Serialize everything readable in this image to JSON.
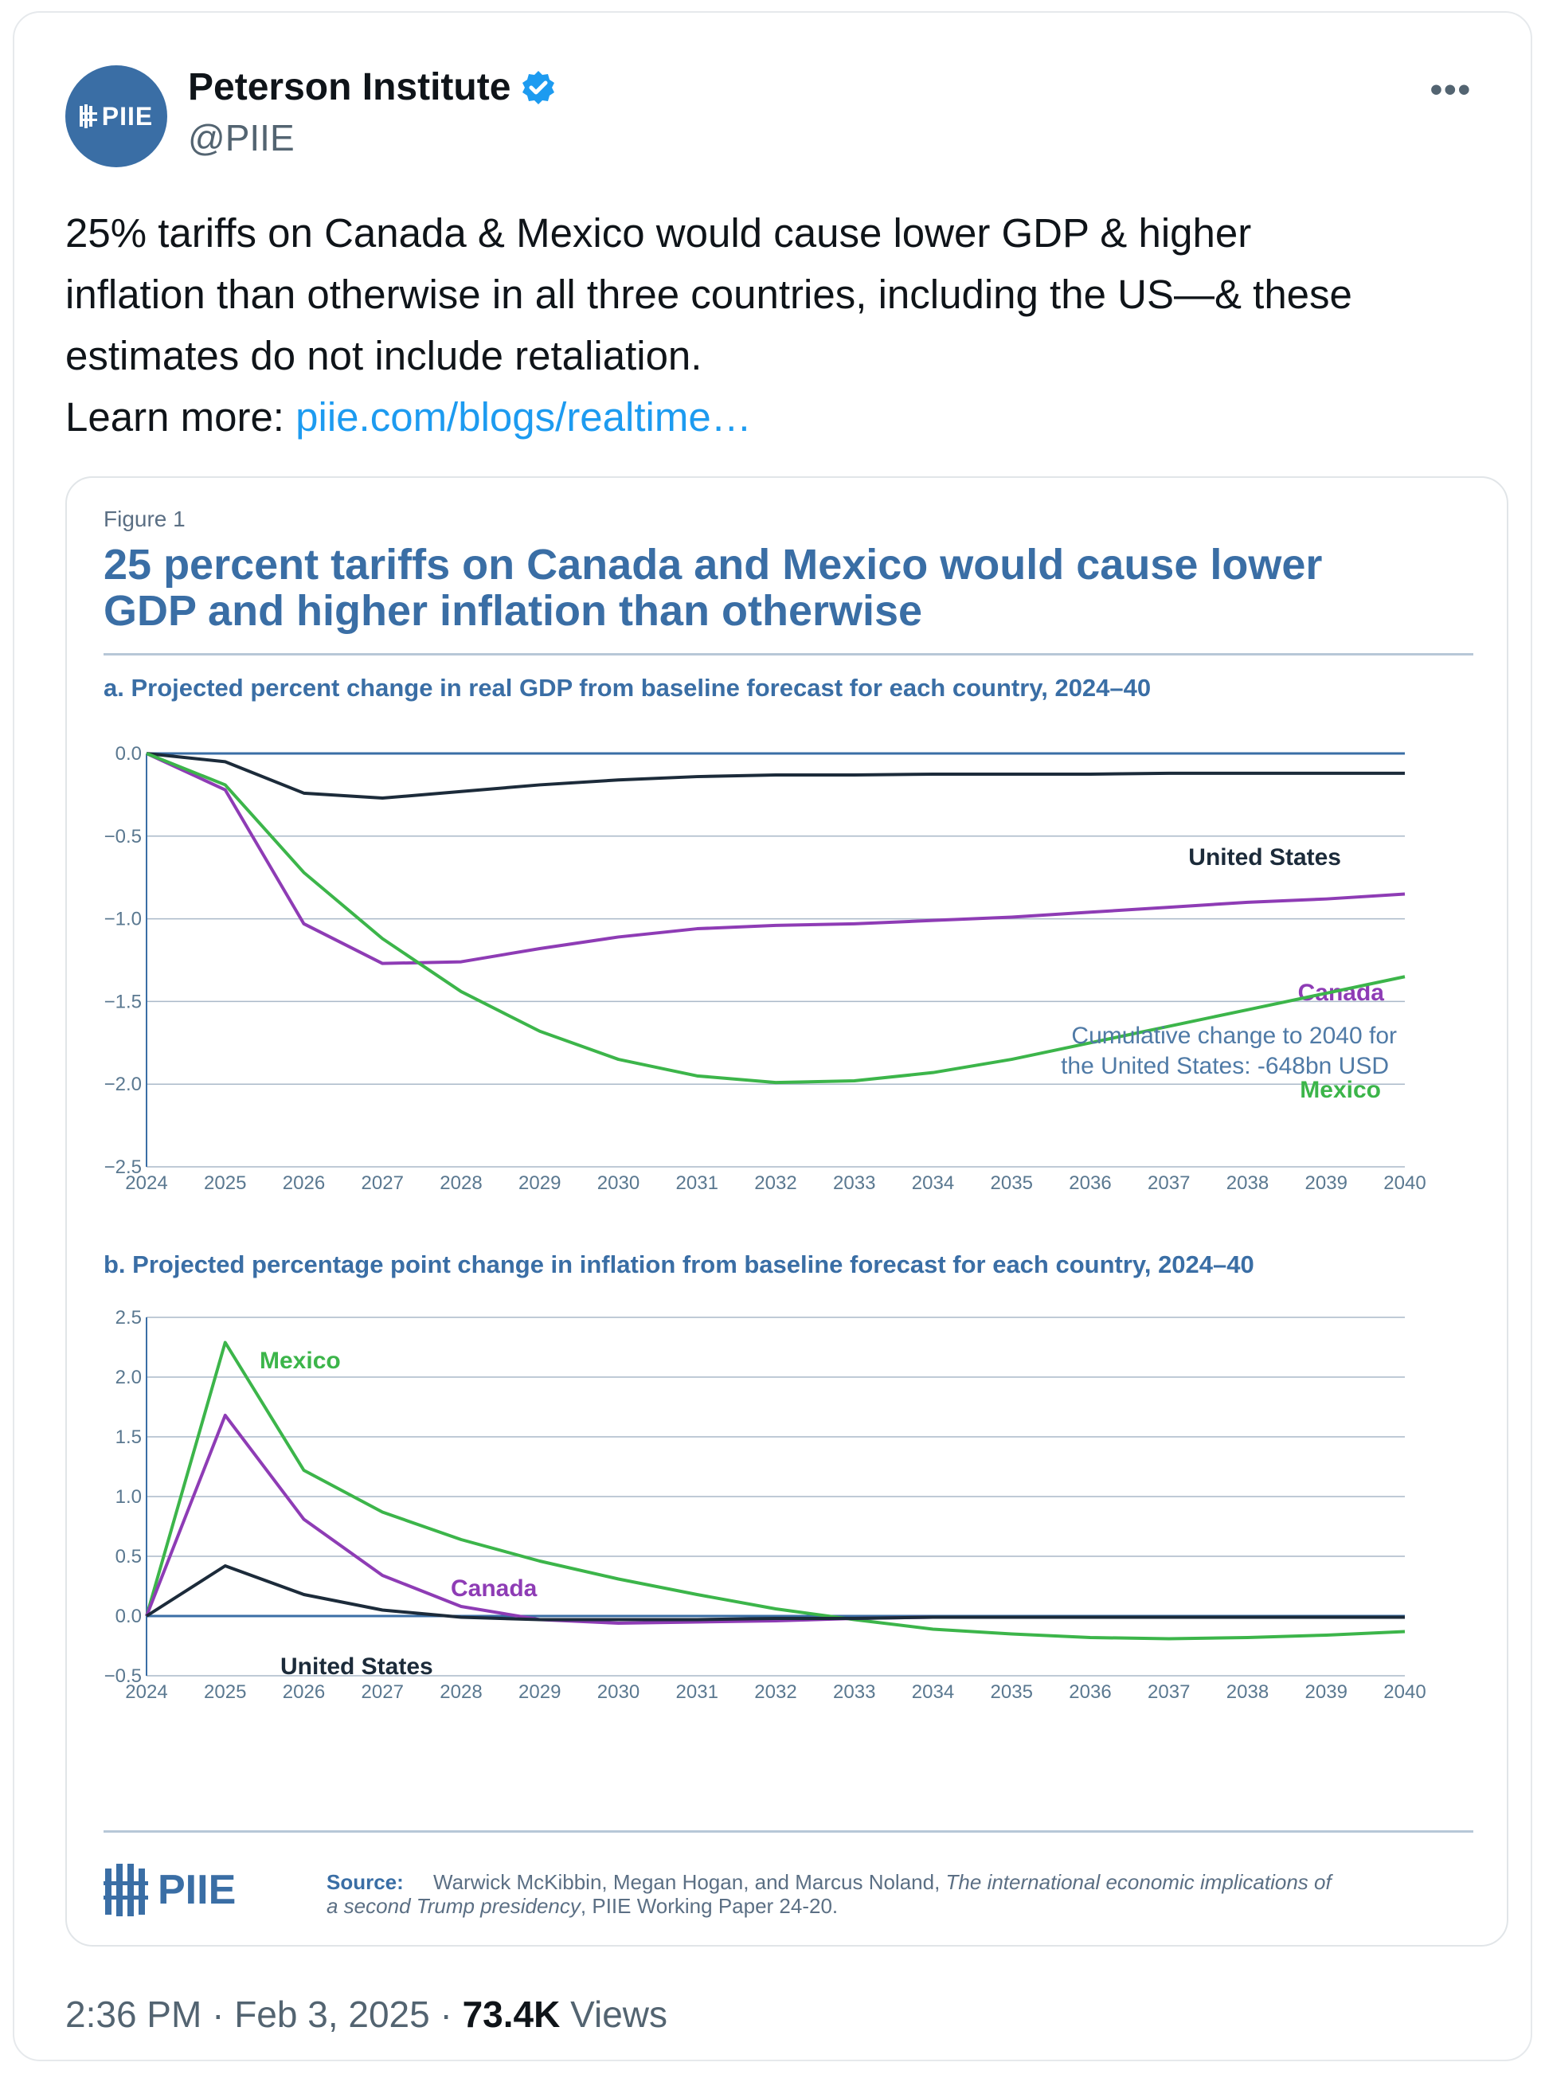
{
  "tweet": {
    "author_name": "Peterson Institute",
    "handle": "@PIIE",
    "avatar_text": "PIIE",
    "more_label": "•••",
    "text_line1": "25% tariffs on Canada & Mexico would cause lower GDP & higher",
    "text_line2": "inflation than otherwise in all three countries, including the US—& these",
    "text_line3": "estimates do not include retaliation.",
    "learn_more": "Learn more: ",
    "link_text": "piie.com/blogs/realtime…",
    "time": "2:36 PM · Feb 3, 2025 · ",
    "views_count": "73.4K",
    "views_label": " Views"
  },
  "figure": {
    "label": "Figure 1",
    "title_line1": "25 percent tariffs on Canada and Mexico would cause lower",
    "title_line2": "GDP and higher inflation than otherwise",
    "source_label": "Source:",
    "source_text_1": "Warwick McKibbin, Megan Hogan, and Marcus Noland, ",
    "source_italic_1": "The international economic implications of",
    "source_italic_2": "a second Trump presidency",
    "source_text_2": ", PIIE Working Paper 24-20.",
    "logo_text": "PIIE"
  },
  "colors": {
    "us": "#1c2b3a",
    "canada": "#8e3cb5",
    "mexico": "#3cb54a",
    "axis": "#3a6ea5",
    "grid": "#aab9c9"
  },
  "chart_data": [
    {
      "type": "line",
      "title": "a. Projected percent change in real GDP from baseline forecast for each country, 2024–40",
      "x": [
        2024,
        2025,
        2026,
        2027,
        2028,
        2029,
        2030,
        2031,
        2032,
        2033,
        2034,
        2035,
        2036,
        2037,
        2038,
        2039,
        2040
      ],
      "x_ticks": [
        "2024",
        "2025",
        "2026",
        "2027",
        "2028",
        "2029",
        "2030",
        "2031",
        "2032",
        "2033",
        "2034",
        "2035",
        "2036",
        "2037",
        "2038",
        "2039",
        "2040"
      ],
      "y_ticks": [
        "0.0",
        "−0.5",
        "−1.0",
        "−1.5",
        "−2.0",
        "−2.5"
      ],
      "ylim": [
        -2.5,
        0
      ],
      "series": [
        {
          "name": "United States",
          "key": "us",
          "values": [
            0,
            -0.05,
            -0.24,
            -0.27,
            -0.23,
            -0.19,
            -0.16,
            -0.14,
            -0.13,
            -0.13,
            -0.125,
            -0.125,
            -0.125,
            -0.12,
            -0.12,
            -0.12,
            -0.12
          ]
        },
        {
          "name": "Canada",
          "key": "canada",
          "values": [
            0,
            -0.22,
            -1.03,
            -1.27,
            -1.26,
            -1.18,
            -1.11,
            -1.06,
            -1.04,
            -1.03,
            -1.01,
            -0.99,
            -0.96,
            -0.93,
            -0.9,
            -0.88,
            -0.85
          ]
        },
        {
          "name": "Mexico",
          "key": "mexico",
          "values": [
            0,
            -0.19,
            -0.72,
            -1.12,
            -1.44,
            -1.68,
            -1.85,
            -1.95,
            -1.99,
            -1.98,
            -1.93,
            -1.85,
            -1.75,
            -1.65,
            -1.55,
            -1.45,
            -1.35
          ]
        }
      ],
      "annotation_1": "Cumulative change to 2040 for",
      "annotation_2": "the United States: -648bn USD"
    },
    {
      "type": "line",
      "title": "b. Projected percentage point change in inflation from baseline forecast for each country, 2024–40",
      "x": [
        2024,
        2025,
        2026,
        2027,
        2028,
        2029,
        2030,
        2031,
        2032,
        2033,
        2034,
        2035,
        2036,
        2037,
        2038,
        2039,
        2040
      ],
      "x_ticks": [
        "2024",
        "2025",
        "2026",
        "2027",
        "2028",
        "2029",
        "2030",
        "2031",
        "2032",
        "2033",
        "2034",
        "2035",
        "2036",
        "2037",
        "2038",
        "2039",
        "2040"
      ],
      "y_ticks": [
        "2.5",
        "2.0",
        "1.5",
        "1.0",
        "0.5",
        "0.0",
        "−0.5"
      ],
      "ylim": [
        -0.5,
        2.5
      ],
      "series": [
        {
          "name": "Mexico",
          "key": "mexico",
          "values": [
            0,
            2.29,
            1.22,
            0.87,
            0.64,
            0.46,
            0.31,
            0.18,
            0.06,
            -0.03,
            -0.11,
            -0.15,
            -0.18,
            -0.19,
            -0.18,
            -0.16,
            -0.13
          ]
        },
        {
          "name": "Canada",
          "key": "canada",
          "values": [
            0,
            1.68,
            0.81,
            0.34,
            0.08,
            -0.03,
            -0.06,
            -0.05,
            -0.04,
            -0.02,
            -0.01,
            -0.01,
            -0.01,
            -0.01,
            -0.01,
            -0.01,
            -0.01
          ]
        },
        {
          "name": "United States",
          "key": "us",
          "values": [
            0,
            0.42,
            0.18,
            0.05,
            -0.01,
            -0.03,
            -0.03,
            -0.03,
            -0.02,
            -0.02,
            -0.01,
            -0.01,
            -0.01,
            -0.01,
            -0.01,
            -0.01,
            -0.01
          ]
        }
      ]
    }
  ]
}
